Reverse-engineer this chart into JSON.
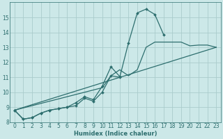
{
  "xlabel": "Humidex (Indice chaleur)",
  "bg_color": "#cce8e8",
  "line_color": "#2d6e6e",
  "grid_color": "#aacccc",
  "xlim": [
    -0.5,
    23.5
  ],
  "ylim": [
    8,
    16
  ],
  "yticks": [
    8,
    9,
    10,
    11,
    12,
    13,
    14,
    15
  ],
  "xticks": [
    0,
    1,
    2,
    3,
    4,
    5,
    6,
    7,
    8,
    9,
    10,
    11,
    12,
    13,
    14,
    15,
    16,
    17,
    18,
    19,
    20,
    21,
    22,
    23
  ],
  "series1_x": [
    0,
    1,
    2,
    3,
    4,
    5,
    6,
    7,
    8,
    9,
    10,
    11,
    12,
    13,
    14,
    15,
    16,
    17
  ],
  "series1_y": [
    8.8,
    8.2,
    8.3,
    8.6,
    8.8,
    8.9,
    9.0,
    9.1,
    9.6,
    9.4,
    10.0,
    11.1,
    11.0,
    13.3,
    15.3,
    15.55,
    15.2,
    13.85
  ],
  "series2_x": [
    0,
    1,
    2,
    3,
    4,
    5,
    6,
    7,
    8,
    9,
    10,
    11,
    12
  ],
  "series2_y": [
    8.8,
    8.2,
    8.3,
    8.6,
    8.8,
    8.9,
    9.0,
    9.3,
    9.7,
    9.5,
    10.4,
    11.7,
    11.05
  ],
  "series3_x": [
    0,
    10,
    11,
    12,
    13,
    14,
    15,
    16,
    17,
    18,
    19,
    20,
    21,
    22,
    23
  ],
  "series3_y": [
    8.8,
    10.3,
    11.1,
    11.5,
    11.1,
    11.5,
    13.0,
    13.35,
    13.35,
    13.35,
    13.35,
    13.1,
    13.15,
    13.15,
    13.0
  ],
  "series4_x": [
    0,
    23
  ],
  "series4_y": [
    8.8,
    13.0
  ],
  "markersize": 2.0,
  "linewidth": 0.9,
  "tick_fontsize": 5.5,
  "xlabel_fontsize": 6.0
}
